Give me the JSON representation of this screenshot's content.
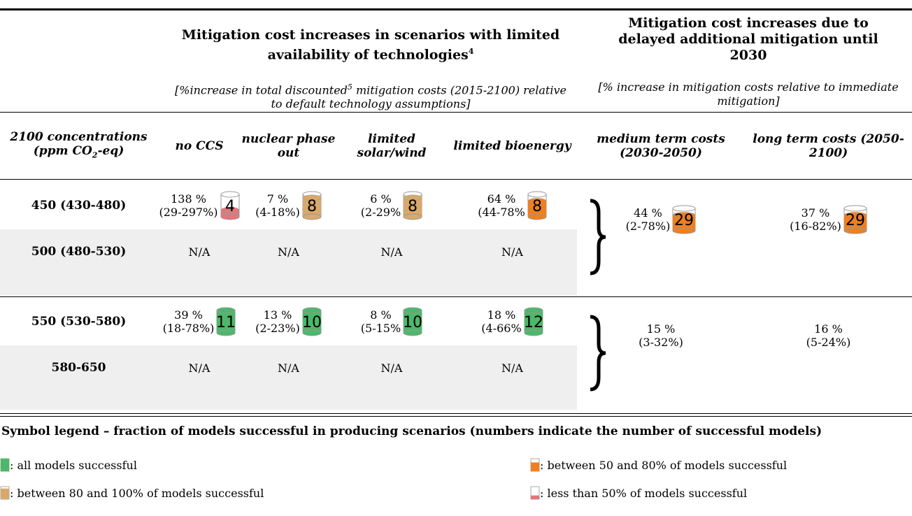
{
  "header": {
    "group1": {
      "title": "Mitigation cost increases in scenarios with limited availability of technologies",
      "title_sup": "4",
      "subtitle": [
        "[%increase in total discounted",
        "5",
        " mitigation costs (2015-2100) relative to default technology assumptions]"
      ]
    },
    "group2": {
      "title": "Mitigation cost increases due to delayed additional mitigation until 2030",
      "subtitle": "[% increase in mitigation costs relative to immediate mitigation]"
    }
  },
  "columns": [
    [
      "2100 concentrations (ppm CO",
      "2",
      "-eq)"
    ],
    [
      "no CCS"
    ],
    [
      "nuclear phase out"
    ],
    [
      "limited solar/wind"
    ],
    [
      "limited bioenergy"
    ],
    [
      "medium term costs (2030-2050)"
    ],
    [
      "long term costs (2050-2100)"
    ]
  ],
  "groups": [
    {
      "rows": [
        {
          "label": "450 (430-480)",
          "cells": [
            {
              "value": "138 %",
              "range": "(29-297%)",
              "count": "4",
              "color": "#e8737c"
            },
            {
              "value": "7 %",
              "range": "(4-18%)",
              "count": "8",
              "color": "#d7a96c"
            },
            {
              "value": "6 %",
              "range": "(2-29%",
              "count": "8",
              "color": "#d7a96c"
            },
            {
              "value": "64 %",
              "range": "(44-78%",
              "count": "8",
              "color": "#f07f1e"
            }
          ]
        },
        {
          "label": "500 (480-530)",
          "cells": [
            {
              "value": "N/A"
            },
            {
              "value": "N/A"
            },
            {
              "value": "N/A"
            },
            {
              "value": "N/A"
            }
          ]
        }
      ],
      "delayed": [
        {
          "value": "44 %",
          "range": "(2-78%)",
          "count": "29",
          "color": "#f07f1e"
        },
        {
          "value": "37 %",
          "range": "(16-82%)",
          "count": "29",
          "color": "#f07f1e"
        }
      ]
    },
    {
      "rows": [
        {
          "label": "550 (530-580)",
          "cells": [
            {
              "value": "39 %",
              "range": "(18-78%)",
              "count": "11",
              "color": "#4cb86a"
            },
            {
              "value": "13 %",
              "range": "(2-23%)",
              "count": "10",
              "color": "#4cb86a"
            },
            {
              "value": "8 %",
              "range": "(5-15%",
              "count": "10",
              "color": "#4cb86a"
            },
            {
              "value": "18 %",
              "range": "(4-66%",
              "count": "12",
              "color": "#4cb86a"
            }
          ]
        },
        {
          "label": "580-650",
          "cells": [
            {
              "value": "N/A"
            },
            {
              "value": "N/A"
            },
            {
              "value": "N/A"
            },
            {
              "value": "N/A"
            }
          ]
        }
      ],
      "delayed": [
        {
          "value": "15 %",
          "range": "(3-32%)"
        },
        {
          "value": "16 %",
          "range": "(5-24%)"
        }
      ]
    }
  ],
  "legend": {
    "title": "Symbol legend – fraction of models successful in producing scenarios (numbers indicate the number of successful models)",
    "items": [
      {
        "color": "#4cb86a",
        "text": ": all models successful"
      },
      {
        "color": "#d7a96c",
        "text": ": between 80 and 100% of models successful"
      },
      {
        "color": "#f07f1e",
        "text": ": between 50 and 80% of models successful"
      },
      {
        "color": "#e8737c",
        "text": ": less than 50% of models successful"
      }
    ]
  }
}
